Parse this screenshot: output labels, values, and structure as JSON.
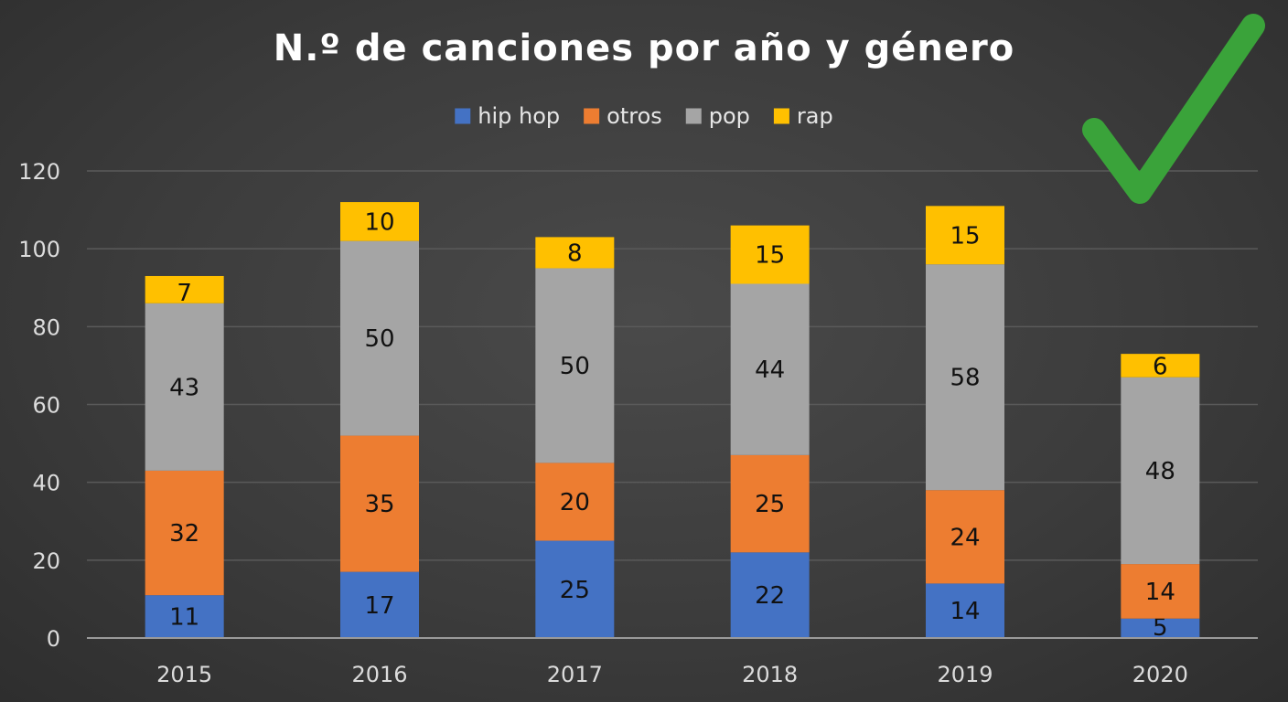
{
  "chart_data": {
    "type": "bar",
    "stacked": true,
    "title": "N.º de canciones por año y género",
    "categories": [
      "2015",
      "2016",
      "2017",
      "2018",
      "2019",
      "2020"
    ],
    "series": [
      {
        "name": "hip hop",
        "color": "#4472c4",
        "values": [
          11,
          17,
          25,
          22,
          14,
          5
        ]
      },
      {
        "name": "otros",
        "color": "#ed7d31",
        "values": [
          32,
          35,
          20,
          25,
          24,
          14
        ]
      },
      {
        "name": "pop",
        "color": "#a5a5a5",
        "values": [
          43,
          50,
          50,
          44,
          58,
          48
        ]
      },
      {
        "name": "rap",
        "color": "#ffc000",
        "values": [
          7,
          10,
          8,
          15,
          15,
          6
        ]
      }
    ],
    "ylim": [
      0,
      120
    ],
    "yticks": [
      0,
      20,
      40,
      60,
      80,
      100,
      120
    ],
    "grid": true,
    "legend": "top-center",
    "data_labels": true
  },
  "decoration": {
    "checkmark_icon": "green-checkmark-icon",
    "checkmark_color": "#3aa33a"
  }
}
